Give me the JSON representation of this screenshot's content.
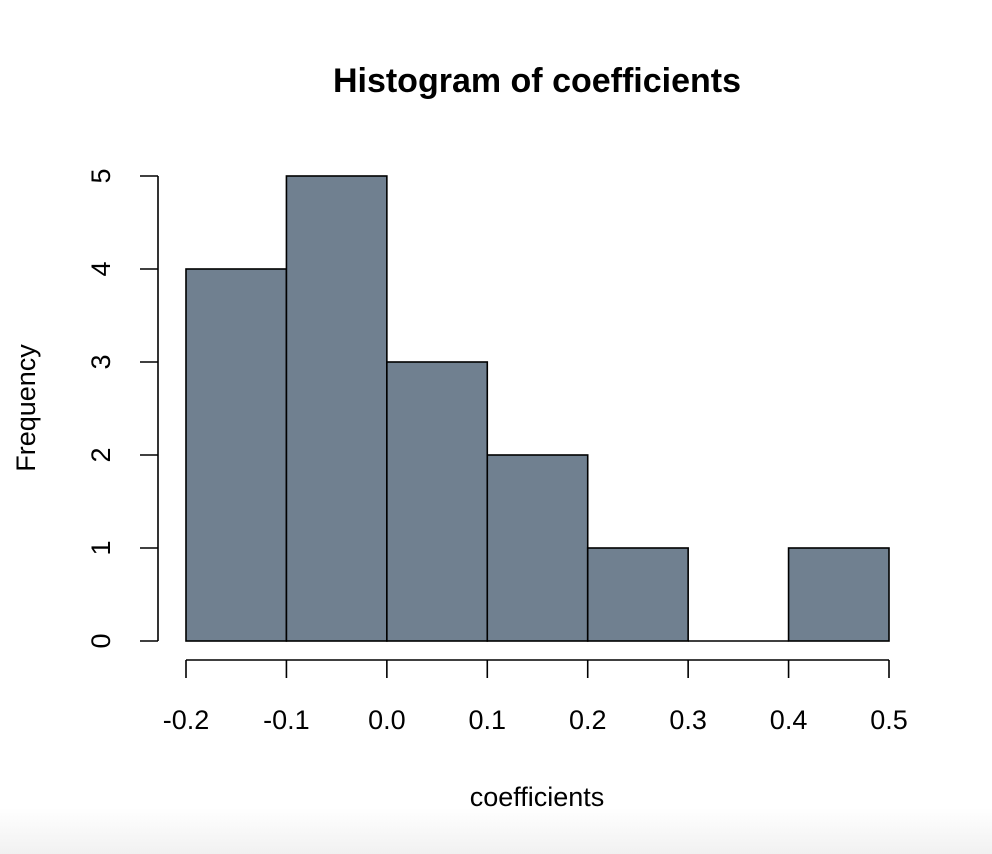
{
  "chart_data": {
    "type": "bar",
    "title": "Histogram of coefficients",
    "xlabel": "coefficients",
    "ylabel": "Frequency",
    "bins": [
      {
        "start": -0.2,
        "end": -0.1,
        "count": 4
      },
      {
        "start": -0.1,
        "end": 0.0,
        "count": 5
      },
      {
        "start": 0.0,
        "end": 0.1,
        "count": 3
      },
      {
        "start": 0.1,
        "end": 0.2,
        "count": 2
      },
      {
        "start": 0.2,
        "end": 0.3,
        "count": 1
      },
      {
        "start": 0.3,
        "end": 0.4,
        "count": 0
      },
      {
        "start": 0.4,
        "end": 0.5,
        "count": 1
      }
    ],
    "xlim": [
      -0.2,
      0.5
    ],
    "ylim": [
      0,
      5
    ],
    "xticks": [
      "-0.2",
      "-0.1",
      "0.0",
      "0.1",
      "0.2",
      "0.3",
      "0.4",
      "0.5"
    ],
    "yticks": [
      "0",
      "1",
      "2",
      "3",
      "4",
      "5"
    ],
    "grid": false,
    "bar_color": "#708090",
    "edge_color": "#000000"
  }
}
